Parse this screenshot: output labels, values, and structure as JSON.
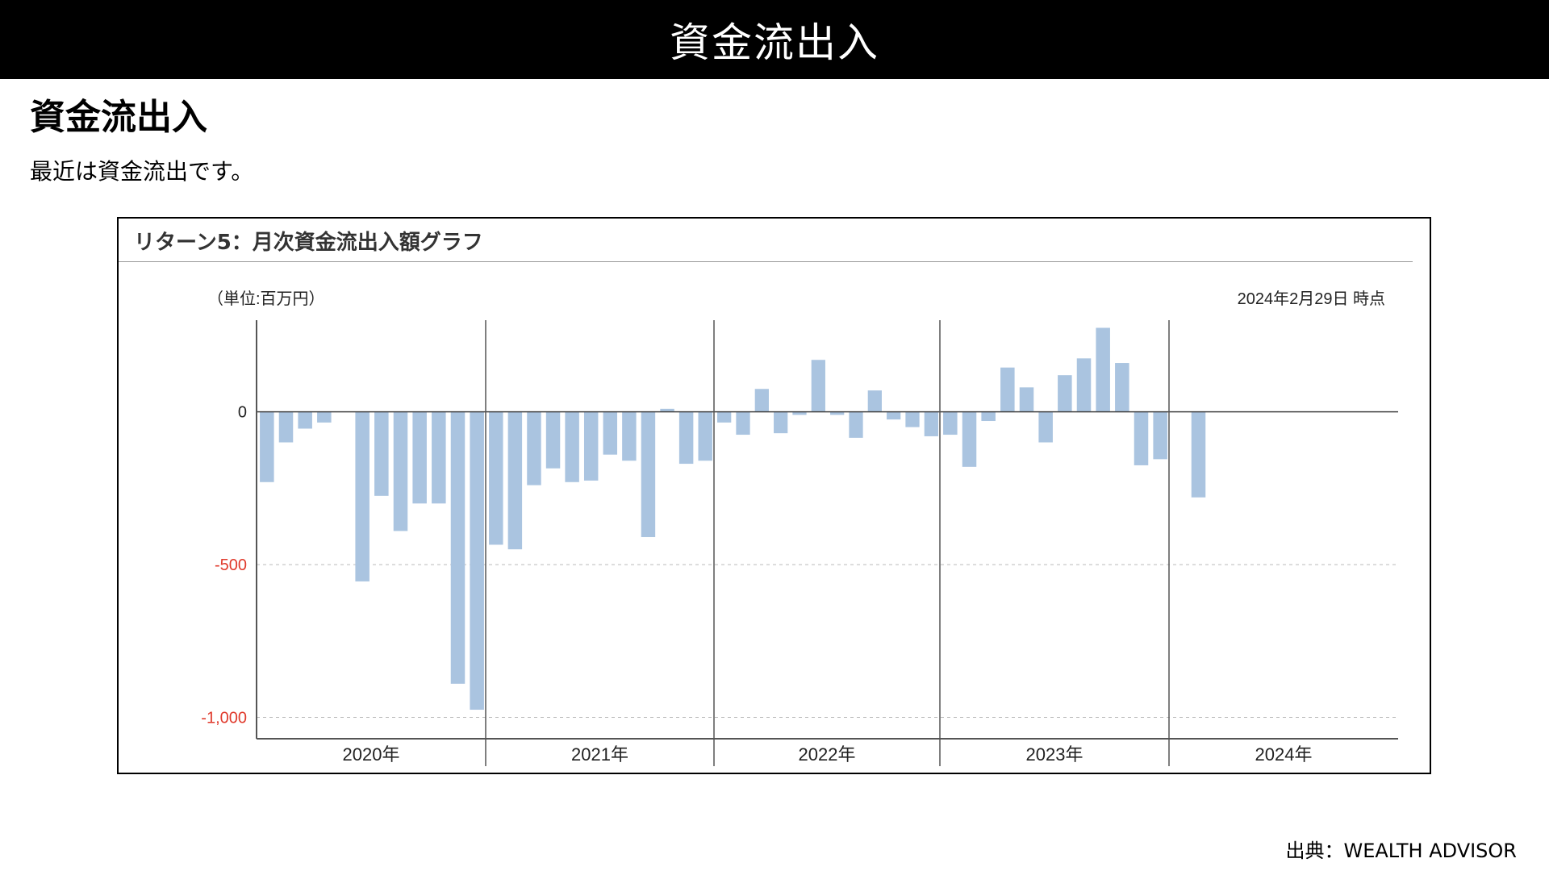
{
  "header": {
    "title": "資金流出入"
  },
  "section": {
    "title": "資金流出入",
    "subtitle": "最近は資金流出です。"
  },
  "chart_data": {
    "type": "bar",
    "title": "リターン5：月次資金流出入額グラフ",
    "unit_label": "（単位:百万円）",
    "as_of_label": "2024年2月29日 時点",
    "ylim": [
      -1070,
      300
    ],
    "y_ticks": [
      {
        "value": 0,
        "label": "0"
      },
      {
        "value": -500,
        "label": "-500"
      },
      {
        "value": -1000,
        "label": "-1,000"
      }
    ],
    "year_groups": [
      {
        "label": "2020年",
        "months": 12
      },
      {
        "label": "2021年",
        "months": 12
      },
      {
        "label": "2022年",
        "months": 12
      },
      {
        "label": "2023年",
        "months": 12
      },
      {
        "label": "2024年",
        "months": 12
      }
    ],
    "values": [
      -230,
      -100,
      -55,
      -35,
      0,
      -555,
      -275,
      -390,
      -300,
      -300,
      -890,
      -975,
      -435,
      -450,
      -240,
      -185,
      -230,
      -225,
      -140,
      -160,
      -410,
      10,
      -170,
      -160,
      -35,
      -75,
      75,
      -70,
      -10,
      170,
      -10,
      -85,
      70,
      -25,
      -50,
      -80,
      -75,
      -180,
      -30,
      145,
      80,
      -100,
      120,
      175,
      275,
      160,
      -175,
      -155,
      0,
      -280,
      null,
      null,
      null,
      null,
      null,
      null,
      null,
      null,
      null,
      null
    ],
    "bar_color": "#aac4e0",
    "negative_tick_color": "#e03a2c",
    "grid": "dashed at -500 and -1000",
    "legend": "none"
  },
  "source": {
    "text": "出典：WEALTH ADVISOR"
  }
}
